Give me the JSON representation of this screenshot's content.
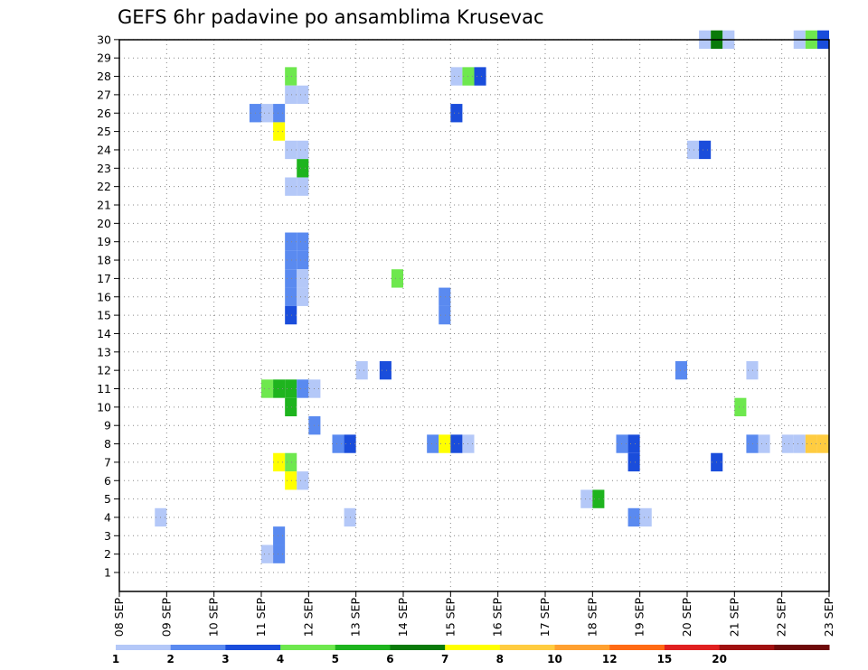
{
  "title": "GEFS 6hr padavine po ansamblima Krusevac",
  "chart_data": {
    "type": "heatmap",
    "title": "GEFS 6hr padavine po ansamblima Krusevac",
    "x_tick_labels": [
      "08 SEP",
      "09 SEP",
      "10 SEP",
      "11 SEP",
      "12 SEP",
      "13 SEP",
      "14 SEP",
      "15 SEP",
      "16 SEP",
      "17 SEP",
      "18 SEP",
      "19 SEP",
      "20 SEP",
      "21 SEP",
      "22 SEP",
      "23 SEP"
    ],
    "y_tick_labels": [
      "1",
      "2",
      "3",
      "4",
      "5",
      "6",
      "7",
      "8",
      "9",
      "10",
      "11",
      "12",
      "13",
      "14",
      "15",
      "16",
      "17",
      "18",
      "19",
      "20",
      "21",
      "22",
      "23",
      "24",
      "25",
      "26",
      "27",
      "28",
      "29",
      "30"
    ],
    "x_unit": "6-hour steps from 08 SEP",
    "x_range": [
      0,
      60
    ],
    "y_range": [
      1,
      30
    ],
    "grid": true,
    "colorbar": {
      "ticks": [
        "1",
        "2",
        "3",
        "4",
        "5",
        "6",
        "7",
        "8",
        "10",
        "12",
        "15",
        "20"
      ],
      "colors": [
        "#b4c8f8",
        "#5a8af0",
        "#1a4ddb",
        "#6ee84e",
        "#1eb41e",
        "#0a7a0a",
        "#ffff00",
        "#ffcc40",
        "#ffa030",
        "#ff6a14",
        "#e02020",
        "#a01010",
        "#6e0a0a"
      ]
    },
    "cells": [
      [
        50,
        30,
        1
      ],
      [
        51,
        30,
        6
      ],
      [
        52,
        30,
        1
      ],
      [
        58,
        30,
        1
      ],
      [
        59,
        30,
        4
      ],
      [
        60,
        30,
        3
      ],
      [
        15,
        28,
        4
      ],
      [
        29,
        28,
        1
      ],
      [
        30,
        28,
        4
      ],
      [
        31,
        28,
        3
      ],
      [
        15,
        27,
        1
      ],
      [
        16,
        27,
        1
      ],
      [
        12,
        26,
        2
      ],
      [
        13,
        26,
        1
      ],
      [
        14,
        26,
        2
      ],
      [
        29,
        26,
        3
      ],
      [
        14,
        25,
        7
      ],
      [
        15,
        24,
        1
      ],
      [
        16,
        24,
        1
      ],
      [
        49,
        24,
        1
      ],
      [
        50,
        24,
        3
      ],
      [
        16,
        23,
        5
      ],
      [
        15,
        22,
        1
      ],
      [
        16,
        22,
        1
      ],
      [
        15,
        19,
        2
      ],
      [
        16,
        19,
        2
      ],
      [
        15,
        18,
        2
      ],
      [
        16,
        18,
        2
      ],
      [
        15,
        17,
        2
      ],
      [
        16,
        17,
        1
      ],
      [
        24,
        17,
        4
      ],
      [
        15,
        16,
        2
      ],
      [
        16,
        16,
        1
      ],
      [
        28,
        16,
        2
      ],
      [
        15,
        15,
        3
      ],
      [
        28,
        15,
        2
      ],
      [
        21,
        12,
        1
      ],
      [
        23,
        12,
        3
      ],
      [
        48,
        12,
        2
      ],
      [
        54,
        12,
        1
      ],
      [
        13,
        11,
        4
      ],
      [
        14,
        11,
        5
      ],
      [
        15,
        11,
        5
      ],
      [
        16,
        11,
        2
      ],
      [
        17,
        11,
        1
      ],
      [
        15,
        10,
        5
      ],
      [
        53,
        10,
        4
      ],
      [
        17,
        9,
        2
      ],
      [
        19,
        8,
        2
      ],
      [
        20,
        8,
        3
      ],
      [
        27,
        8,
        2
      ],
      [
        28,
        8,
        7
      ],
      [
        29,
        8,
        3
      ],
      [
        30,
        8,
        1
      ],
      [
        43,
        8,
        2
      ],
      [
        44,
        8,
        3
      ],
      [
        54,
        8,
        2
      ],
      [
        55,
        8,
        1
      ],
      [
        57,
        8,
        1
      ],
      [
        58,
        8,
        1
      ],
      [
        59,
        8,
        8
      ],
      [
        60,
        8,
        8
      ],
      [
        14,
        7,
        7
      ],
      [
        15,
        7,
        4
      ],
      [
        44,
        7,
        3
      ],
      [
        51,
        7,
        3
      ],
      [
        15,
        6,
        7
      ],
      [
        16,
        6,
        1
      ],
      [
        40,
        5,
        1
      ],
      [
        41,
        5,
        5
      ],
      [
        4,
        4,
        1
      ],
      [
        20,
        4,
        1
      ],
      [
        44,
        4,
        2
      ],
      [
        45,
        4,
        1
      ],
      [
        14,
        3,
        2
      ],
      [
        13,
        2,
        1
      ],
      [
        14,
        2,
        2
      ]
    ]
  }
}
